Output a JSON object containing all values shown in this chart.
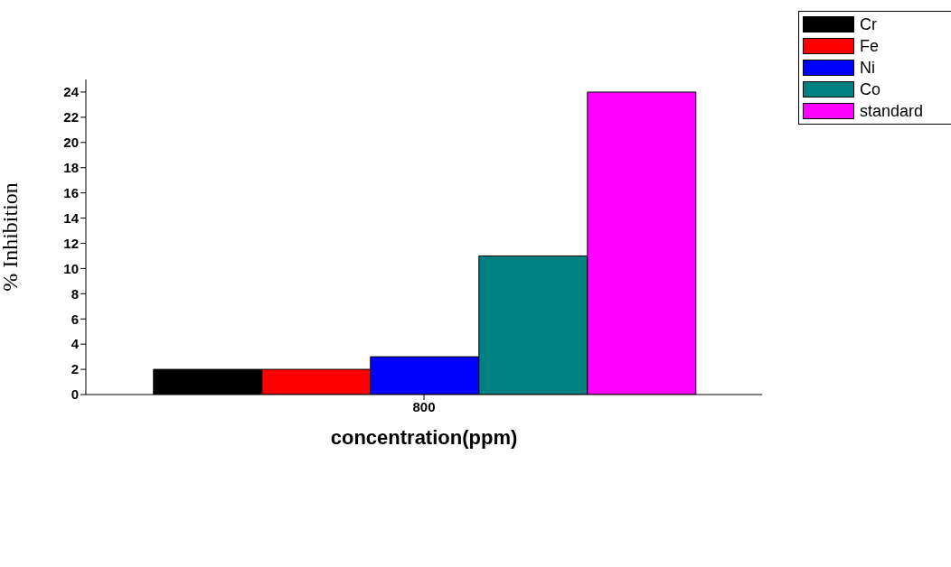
{
  "chart_data": {
    "type": "bar",
    "xlabel": "concentration(ppm)",
    "ylabel": "% Inhibition",
    "categories": [
      "800"
    ],
    "series": [
      {
        "name": "Cr",
        "color": "#000000",
        "values": [
          2
        ]
      },
      {
        "name": "Fe",
        "color": "#ff0000",
        "values": [
          2
        ]
      },
      {
        "name": "Ni",
        "color": "#0000ff",
        "values": [
          3
        ]
      },
      {
        "name": "Co",
        "color": "#008080",
        "values": [
          11
        ]
      },
      {
        "name": "standard",
        "color": "#ff00ff",
        "values": [
          24
        ]
      }
    ],
    "ylim": [
      0,
      25
    ],
    "yticks": [
      0,
      2,
      4,
      6,
      8,
      10,
      12,
      14,
      16,
      18,
      20,
      22,
      24
    ],
    "grid": false,
    "legend": "top right"
  }
}
